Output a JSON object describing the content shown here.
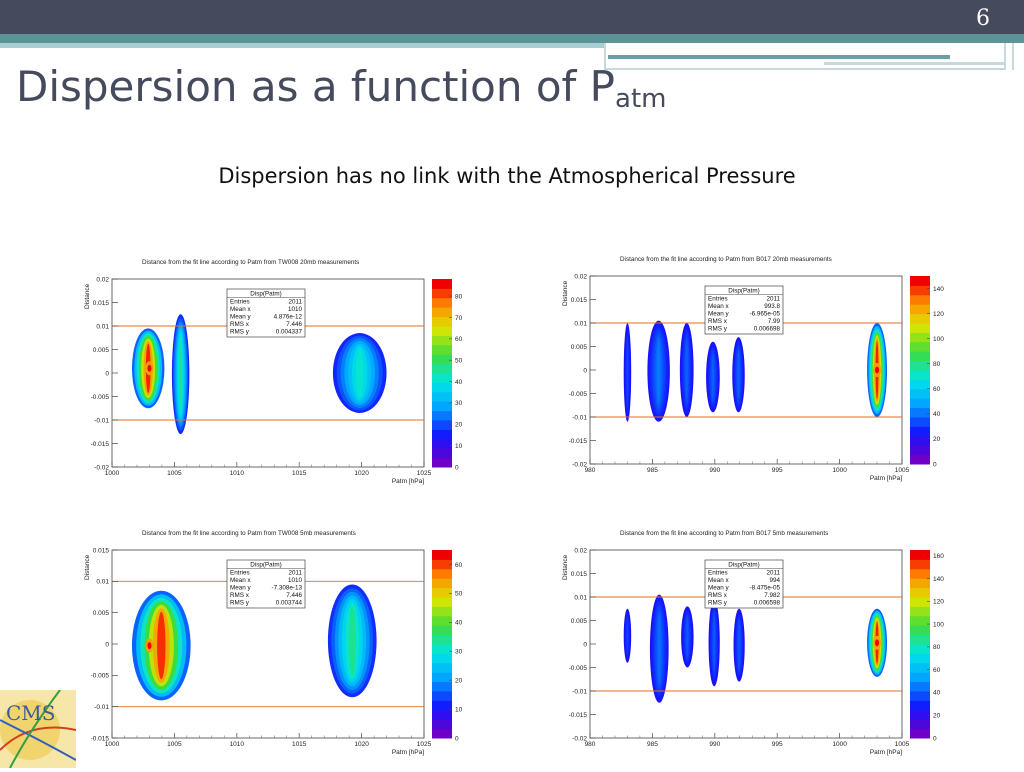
{
  "slide": {
    "number": "6",
    "title_main": "Dispersion as a function of P",
    "title_sub": "atm",
    "subtitle": "Dispersion has no link with the Atmospherical Pressure",
    "logo_text": "CMS"
  },
  "colors": {
    "header_bar": "#454a5c",
    "teal_bar": "#5a9496",
    "fit_line": "#e07020"
  },
  "chart_data": [
    {
      "type": "heatmap",
      "title": "Distance from the fit line according to Patm from TW008 20mb measurements",
      "xlabel": "Patm [hPa]",
      "ylabel": "Distance",
      "xlim": [
        1000,
        1025
      ],
      "ylim": [
        -0.02,
        0.02
      ],
      "xticks": [
        "1000",
        "1005",
        "1010",
        "1015",
        "1020",
        "1025"
      ],
      "yticks": [
        "-0.02",
        "-0.015",
        "-0.01",
        "-0.005",
        "0",
        "0.005",
        "0.01",
        "0.015",
        "0.02"
      ],
      "zticks": [
        "0",
        "10",
        "20",
        "30",
        "40",
        "50",
        "60",
        "70",
        "80"
      ],
      "zmax": 88,
      "fit_lines": [
        0.01,
        -0.01
      ],
      "stats": {
        "name": "Disp(Patm)",
        "rows": [
          [
            "Entries",
            "2011"
          ],
          [
            "Mean x",
            "1010"
          ],
          [
            "Mean y",
            "4.876e-12"
          ],
          [
            "RMS x",
            "7.446"
          ],
          [
            "RMS y",
            "0.004337"
          ]
        ]
      },
      "blobs": [
        {
          "x": [
            1001.6,
            1004.2
          ],
          "y": [
            -0.0075,
            0.0095
          ],
          "peak": 85,
          "core": 1003
        },
        {
          "x": [
            1004.8,
            1006.2
          ],
          "y": [
            -0.013,
            0.0125
          ],
          "peak": 40
        },
        {
          "x": [
            1017.7,
            1022.0
          ],
          "y": [
            -0.0085,
            0.0085
          ],
          "peak": 35
        }
      ]
    },
    {
      "type": "heatmap",
      "title": "Distance from the fit line according to Patm from B017 20mb measurements",
      "xlabel": "Patm [hPa]",
      "ylabel": "Distance",
      "xlim": [
        980,
        1005
      ],
      "ylim": [
        -0.02,
        0.02
      ],
      "xticks": [
        "980",
        "985",
        "990",
        "995",
        "1000",
        "1005"
      ],
      "yticks": [
        "-0.02",
        "-0.015",
        "-0.01",
        "-0.005",
        "0",
        "0.005",
        "0.01",
        "0.015",
        "0.02"
      ],
      "zticks": [
        "0",
        "20",
        "40",
        "60",
        "80",
        "100",
        "120",
        "140"
      ],
      "zmax": 150,
      "fit_lines": [
        0.01,
        -0.01
      ],
      "stats": {
        "name": "Disp(Patm)",
        "rows": [
          [
            "Entries",
            "2011"
          ],
          [
            "Mean x",
            "993.8"
          ],
          [
            "Mean y",
            "-6.965e-05"
          ],
          [
            "RMS x",
            "7.99"
          ],
          [
            "RMS y",
            "0.006698"
          ]
        ]
      },
      "blobs": [
        {
          "x": [
            982.7,
            983.3
          ],
          "y": [
            -0.011,
            0.01
          ],
          "peak": 15
        },
        {
          "x": [
            984.6,
            986.4
          ],
          "y": [
            -0.011,
            0.0105
          ],
          "peak": 25
        },
        {
          "x": [
            987.2,
            988.3
          ],
          "y": [
            -0.01,
            0.01
          ],
          "peak": 20
        },
        {
          "x": [
            989.3,
            990.4
          ],
          "y": [
            -0.009,
            0.006
          ],
          "peak": 20
        },
        {
          "x": [
            991.4,
            992.4
          ],
          "y": [
            -0.009,
            0.007
          ],
          "peak": 20
        },
        {
          "x": [
            1002.2,
            1003.8
          ],
          "y": [
            -0.01,
            0.01
          ],
          "peak": 145,
          "core": 1003
        }
      ]
    },
    {
      "type": "heatmap",
      "title": "Distance from the fit line according to Patm from TW008 5mb measurements",
      "xlabel": "Patm [hPa]",
      "ylabel": "Distance",
      "xlim": [
        1000,
        1025
      ],
      "ylim": [
        -0.015,
        0.015
      ],
      "xticks": [
        "1000",
        "1005",
        "1010",
        "1015",
        "1020",
        "1025"
      ],
      "yticks": [
        "-0.015",
        "-0.01",
        "-0.005",
        "0",
        "0.005",
        "0.01",
        "0.015"
      ],
      "zticks": [
        "0",
        "10",
        "20",
        "30",
        "40",
        "50",
        "60"
      ],
      "zmax": 65,
      "fit_lines": [
        0.01,
        -0.01
      ],
      "stats": {
        "name": "Disp(Patm)",
        "rows": [
          [
            "Entries",
            "2011"
          ],
          [
            "Mean x",
            "1010"
          ],
          [
            "Mean y",
            "-7.308e-13"
          ],
          [
            "RMS x",
            "7.446"
          ],
          [
            "RMS y",
            "0.003744"
          ]
        ]
      },
      "blobs": [
        {
          "x": [
            1001.6,
            1006.3
          ],
          "y": [
            -0.009,
            0.0085
          ],
          "peak": 62,
          "core": 1003
        },
        {
          "x": [
            1017.3,
            1021.2
          ],
          "y": [
            -0.0085,
            0.0095
          ],
          "peak": 30
        }
      ]
    },
    {
      "type": "heatmap",
      "title": "Distance from the fit line according to Patm from B017 5mb measurements",
      "xlabel": "Patm [hPa]",
      "ylabel": "Distance",
      "xlim": [
        980,
        1005
      ],
      "ylim": [
        -0.02,
        0.02
      ],
      "xticks": [
        "980",
        "985",
        "990",
        "995",
        "1000",
        "1005"
      ],
      "yticks": [
        "-0.02",
        "-0.015",
        "-0.01",
        "-0.005",
        "0",
        "0.005",
        "0.01",
        "0.015",
        "0.02"
      ],
      "zticks": [
        "0",
        "20",
        "40",
        "60",
        "80",
        "100",
        "120",
        "140",
        "160"
      ],
      "zmax": 165,
      "fit_lines": [
        0.01,
        -0.01
      ],
      "stats": {
        "name": "Disp(Patm)",
        "rows": [
          [
            "Entries",
            "2011"
          ],
          [
            "Mean x",
            "994"
          ],
          [
            "Mean y",
            "-8.475e-05"
          ],
          [
            "RMS x",
            "7.982"
          ],
          [
            "RMS y",
            "0.006598"
          ]
        ]
      },
      "blobs": [
        {
          "x": [
            982.7,
            983.3
          ],
          "y": [
            -0.004,
            0.0075
          ],
          "peak": 15
        },
        {
          "x": [
            984.8,
            986.3
          ],
          "y": [
            -0.0125,
            0.0105
          ],
          "peak": 25
        },
        {
          "x": [
            987.3,
            988.3
          ],
          "y": [
            -0.005,
            0.008
          ],
          "peak": 20
        },
        {
          "x": [
            989.5,
            990.4
          ],
          "y": [
            -0.009,
            0.0095
          ],
          "peak": 20
        },
        {
          "x": [
            991.5,
            992.4
          ],
          "y": [
            -0.008,
            0.0075
          ],
          "peak": 20
        },
        {
          "x": [
            1002.2,
            1003.8
          ],
          "y": [
            -0.007,
            0.0075
          ],
          "peak": 160,
          "core": 1003
        }
      ]
    }
  ]
}
